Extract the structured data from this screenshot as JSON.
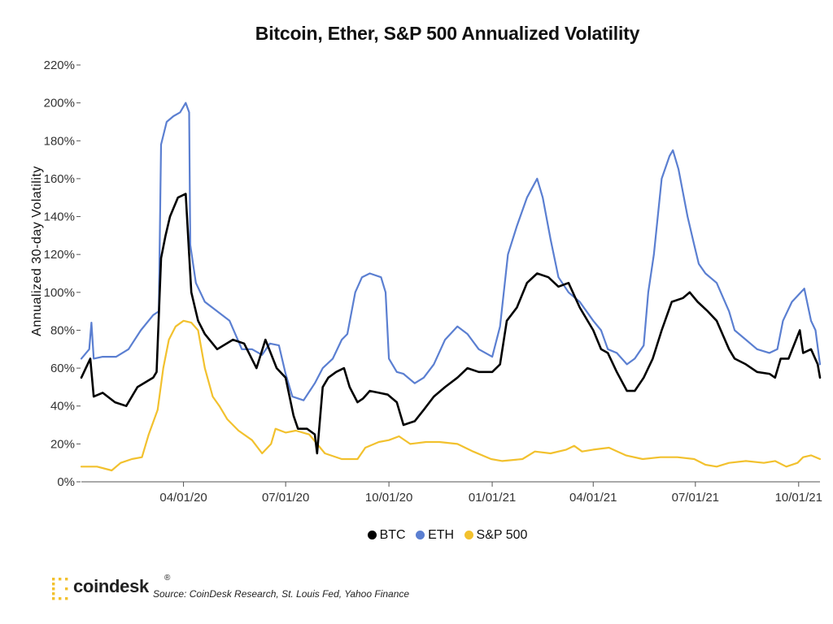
{
  "colors": {
    "btc": "#000000",
    "eth": "#5b7fd1",
    "spx": "#f2c12e",
    "logo": "#f2c12e"
  },
  "footer": {
    "logo_text": "coindesk",
    "logo_reg": "®",
    "source": "Source: CoinDesk Research, St. Louis Fed, Yahoo Finance"
  },
  "chart_data": {
    "type": "line",
    "title": "Bitcoin, Ether, S&P 500 Annualized Volatility",
    "xlabel": "",
    "ylabel": "Annualized 30-day Volatility",
    "ylim": [
      0,
      220
    ],
    "yticks": [
      "0%",
      "20%",
      "40%",
      "60%",
      "80%",
      "100%",
      "120%",
      "140%",
      "160%",
      "180%",
      "200%",
      "220%"
    ],
    "xticks": [
      "04/01/20",
      "07/01/20",
      "10/01/20",
      "01/01/21",
      "04/01/21",
      "07/01/21",
      "10/01/21"
    ],
    "xrange": [
      "2020-01-01",
      "2021-10-20"
    ],
    "grid": false,
    "legend": "bottom-center",
    "series": [
      {
        "name": "BTC",
        "points": [
          [
            "2020-01-01",
            55
          ],
          [
            "2020-01-05",
            60
          ],
          [
            "2020-01-09",
            65
          ],
          [
            "2020-01-12",
            45
          ],
          [
            "2020-01-20",
            47
          ],
          [
            "2020-01-31",
            42
          ],
          [
            "2020-02-10",
            40
          ],
          [
            "2020-02-20",
            50
          ],
          [
            "2020-03-05",
            55
          ],
          [
            "2020-03-08",
            58
          ],
          [
            "2020-03-12",
            118
          ],
          [
            "2020-03-16",
            130
          ],
          [
            "2020-03-20",
            140
          ],
          [
            "2020-03-27",
            150
          ],
          [
            "2020-04-03",
            152
          ],
          [
            "2020-04-06",
            120
          ],
          [
            "2020-04-08",
            100
          ],
          [
            "2020-04-14",
            85
          ],
          [
            "2020-04-20",
            78
          ],
          [
            "2020-05-01",
            70
          ],
          [
            "2020-05-15",
            75
          ],
          [
            "2020-05-25",
            73
          ],
          [
            "2020-06-05",
            60
          ],
          [
            "2020-06-13",
            75
          ],
          [
            "2020-06-23",
            60
          ],
          [
            "2020-07-01",
            55
          ],
          [
            "2020-07-08",
            35
          ],
          [
            "2020-07-12",
            28
          ],
          [
            "2020-07-20",
            28
          ],
          [
            "2020-07-27",
            25
          ],
          [
            "2020-07-29",
            15
          ],
          [
            "2020-08-03",
            50
          ],
          [
            "2020-08-08",
            55
          ],
          [
            "2020-08-15",
            58
          ],
          [
            "2020-08-22",
            60
          ],
          [
            "2020-08-27",
            50
          ],
          [
            "2020-09-03",
            42
          ],
          [
            "2020-09-08",
            44
          ],
          [
            "2020-09-14",
            48
          ],
          [
            "2020-09-22",
            47
          ],
          [
            "2020-09-30",
            46
          ],
          [
            "2020-10-08",
            42
          ],
          [
            "2020-10-14",
            30
          ],
          [
            "2020-10-24",
            32
          ],
          [
            "2020-11-01",
            38
          ],
          [
            "2020-11-10",
            45
          ],
          [
            "2020-11-20",
            50
          ],
          [
            "2020-12-01",
            55
          ],
          [
            "2020-12-10",
            60
          ],
          [
            "2020-12-20",
            58
          ],
          [
            "2021-01-01",
            58
          ],
          [
            "2021-01-08",
            62
          ],
          [
            "2021-01-14",
            85
          ],
          [
            "2021-01-23",
            92
          ],
          [
            "2021-02-01",
            105
          ],
          [
            "2021-02-10",
            110
          ],
          [
            "2021-02-20",
            108
          ],
          [
            "2021-03-01",
            103
          ],
          [
            "2021-03-10",
            105
          ],
          [
            "2021-03-20",
            92
          ],
          [
            "2021-04-01",
            80
          ],
          [
            "2021-04-08",
            70
          ],
          [
            "2021-04-14",
            68
          ],
          [
            "2021-04-22",
            58
          ],
          [
            "2021-05-01",
            48
          ],
          [
            "2021-05-08",
            48
          ],
          [
            "2021-05-16",
            55
          ],
          [
            "2021-05-24",
            65
          ],
          [
            "2021-06-01",
            80
          ],
          [
            "2021-06-10",
            95
          ],
          [
            "2021-06-20",
            97
          ],
          [
            "2021-06-26",
            100
          ],
          [
            "2021-07-03",
            95
          ],
          [
            "2021-07-12",
            90
          ],
          [
            "2021-07-20",
            85
          ],
          [
            "2021-07-31",
            70
          ],
          [
            "2021-08-05",
            65
          ],
          [
            "2021-08-15",
            62
          ],
          [
            "2021-08-25",
            58
          ],
          [
            "2021-09-05",
            57
          ],
          [
            "2021-09-10",
            55
          ],
          [
            "2021-09-15",
            65
          ],
          [
            "2021-09-22",
            65
          ],
          [
            "2021-10-02",
            80
          ],
          [
            "2021-10-05",
            68
          ],
          [
            "2021-10-12",
            70
          ],
          [
            "2021-10-18",
            62
          ],
          [
            "2021-10-20",
            55
          ]
        ]
      },
      {
        "name": "ETH",
        "points": [
          [
            "2020-01-01",
            65
          ],
          [
            "2020-01-08",
            70
          ],
          [
            "2020-01-10",
            84
          ],
          [
            "2020-01-12",
            65
          ],
          [
            "2020-01-20",
            66
          ],
          [
            "2020-02-01",
            66
          ],
          [
            "2020-02-12",
            70
          ],
          [
            "2020-02-23",
            80
          ],
          [
            "2020-03-05",
            88
          ],
          [
            "2020-03-10",
            90
          ],
          [
            "2020-03-12",
            178
          ],
          [
            "2020-03-17",
            190
          ],
          [
            "2020-03-23",
            193
          ],
          [
            "2020-03-29",
            195
          ],
          [
            "2020-04-03",
            200
          ],
          [
            "2020-04-06",
            195
          ],
          [
            "2020-04-07",
            125
          ],
          [
            "2020-04-12",
            105
          ],
          [
            "2020-04-20",
            95
          ],
          [
            "2020-05-01",
            90
          ],
          [
            "2020-05-12",
            85
          ],
          [
            "2020-05-23",
            70
          ],
          [
            "2020-06-01",
            70
          ],
          [
            "2020-06-10",
            67
          ],
          [
            "2020-06-17",
            73
          ],
          [
            "2020-06-25",
            72
          ],
          [
            "2020-07-01",
            57
          ],
          [
            "2020-07-07",
            45
          ],
          [
            "2020-07-17",
            43
          ],
          [
            "2020-07-27",
            52
          ],
          [
            "2020-08-03",
            60
          ],
          [
            "2020-08-12",
            65
          ],
          [
            "2020-08-20",
            75
          ],
          [
            "2020-08-25",
            78
          ],
          [
            "2020-09-01",
            100
          ],
          [
            "2020-09-07",
            108
          ],
          [
            "2020-09-14",
            110
          ],
          [
            "2020-09-24",
            108
          ],
          [
            "2020-09-28",
            100
          ],
          [
            "2020-10-01",
            65
          ],
          [
            "2020-10-08",
            58
          ],
          [
            "2020-10-14",
            57
          ],
          [
            "2020-10-24",
            52
          ],
          [
            "2020-11-01",
            55
          ],
          [
            "2020-11-10",
            62
          ],
          [
            "2020-11-20",
            75
          ],
          [
            "2020-12-01",
            82
          ],
          [
            "2020-12-10",
            78
          ],
          [
            "2020-12-20",
            70
          ],
          [
            "2021-01-01",
            66
          ],
          [
            "2021-01-08",
            82
          ],
          [
            "2021-01-15",
            120
          ],
          [
            "2021-01-23",
            135
          ],
          [
            "2021-02-01",
            150
          ],
          [
            "2021-02-10",
            160
          ],
          [
            "2021-02-15",
            150
          ],
          [
            "2021-02-22",
            128
          ],
          [
            "2021-03-01",
            108
          ],
          [
            "2021-03-10",
            100
          ],
          [
            "2021-03-20",
            95
          ],
          [
            "2021-04-01",
            85
          ],
          [
            "2021-04-08",
            80
          ],
          [
            "2021-04-14",
            70
          ],
          [
            "2021-04-22",
            68
          ],
          [
            "2021-05-01",
            62
          ],
          [
            "2021-05-08",
            65
          ],
          [
            "2021-05-16",
            72
          ],
          [
            "2021-05-20",
            100
          ],
          [
            "2021-05-25",
            120
          ],
          [
            "2021-06-01",
            160
          ],
          [
            "2021-06-08",
            172
          ],
          [
            "2021-06-11",
            175
          ],
          [
            "2021-06-16",
            165
          ],
          [
            "2021-06-24",
            140
          ],
          [
            "2021-06-30",
            125
          ],
          [
            "2021-07-04",
            115
          ],
          [
            "2021-07-10",
            110
          ],
          [
            "2021-07-20",
            105
          ],
          [
            "2021-07-31",
            90
          ],
          [
            "2021-08-05",
            80
          ],
          [
            "2021-08-15",
            75
          ],
          [
            "2021-08-25",
            70
          ],
          [
            "2021-09-05",
            68
          ],
          [
            "2021-09-12",
            70
          ],
          [
            "2021-09-17",
            85
          ],
          [
            "2021-09-25",
            95
          ],
          [
            "2021-10-03",
            100
          ],
          [
            "2021-10-06",
            102
          ],
          [
            "2021-10-12",
            85
          ],
          [
            "2021-10-16",
            80
          ],
          [
            "2021-10-20",
            62
          ]
        ]
      },
      {
        "name": "S&P 500",
        "points": [
          [
            "2020-01-01",
            8
          ],
          [
            "2020-01-15",
            8
          ],
          [
            "2020-01-28",
            6
          ],
          [
            "2020-02-05",
            10
          ],
          [
            "2020-02-15",
            12
          ],
          [
            "2020-02-24",
            13
          ],
          [
            "2020-03-01",
            25
          ],
          [
            "2020-03-09",
            38
          ],
          [
            "2020-03-14",
            60
          ],
          [
            "2020-03-19",
            75
          ],
          [
            "2020-03-25",
            82
          ],
          [
            "2020-04-01",
            85
          ],
          [
            "2020-04-08",
            84
          ],
          [
            "2020-04-14",
            80
          ],
          [
            "2020-04-20",
            60
          ],
          [
            "2020-04-27",
            45
          ],
          [
            "2020-05-03",
            40
          ],
          [
            "2020-05-10",
            33
          ],
          [
            "2020-05-20",
            27
          ],
          [
            "2020-06-01",
            22
          ],
          [
            "2020-06-10",
            15
          ],
          [
            "2020-06-18",
            20
          ],
          [
            "2020-06-22",
            28
          ],
          [
            "2020-07-01",
            26
          ],
          [
            "2020-07-10",
            27
          ],
          [
            "2020-07-22",
            25
          ],
          [
            "2020-08-05",
            15
          ],
          [
            "2020-08-20",
            12
          ],
          [
            "2020-09-03",
            12
          ],
          [
            "2020-09-10",
            18
          ],
          [
            "2020-09-22",
            21
          ],
          [
            "2020-10-01",
            22
          ],
          [
            "2020-10-10",
            24
          ],
          [
            "2020-10-20",
            20
          ],
          [
            "2020-11-03",
            21
          ],
          [
            "2020-11-15",
            21
          ],
          [
            "2020-12-01",
            20
          ],
          [
            "2020-12-15",
            16
          ],
          [
            "2020-12-31",
            12
          ],
          [
            "2021-01-10",
            11
          ],
          [
            "2021-01-28",
            12
          ],
          [
            "2021-02-08",
            16
          ],
          [
            "2021-02-22",
            15
          ],
          [
            "2021-03-08",
            17
          ],
          [
            "2021-03-15",
            19
          ],
          [
            "2021-03-22",
            16
          ],
          [
            "2021-04-01",
            17
          ],
          [
            "2021-04-15",
            18
          ],
          [
            "2021-04-30",
            14
          ],
          [
            "2021-05-15",
            12
          ],
          [
            "2021-05-31",
            13
          ],
          [
            "2021-06-15",
            13
          ],
          [
            "2021-06-30",
            12
          ],
          [
            "2021-07-10",
            9
          ],
          [
            "2021-07-20",
            8
          ],
          [
            "2021-07-31",
            10
          ],
          [
            "2021-08-15",
            11
          ],
          [
            "2021-08-31",
            10
          ],
          [
            "2021-09-10",
            11
          ],
          [
            "2021-09-20",
            8
          ],
          [
            "2021-09-30",
            10
          ],
          [
            "2021-10-05",
            13
          ],
          [
            "2021-10-12",
            14
          ],
          [
            "2021-10-20",
            12
          ]
        ]
      }
    ]
  }
}
